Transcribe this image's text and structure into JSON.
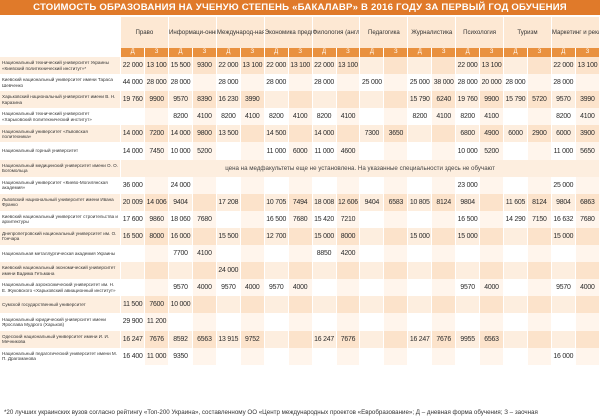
{
  "title": "СТОИМОСТЬ ОБРАЗОВАНИЯ НА УЧЕНУЮ СТЕПЕНЬ «БАКАЛАВР» В 2016 ГОДУ ЗА ПЕРВЫЙ ГОД ОБУЧЕНИЯ",
  "subjects": [
    "Право",
    "Информаци-онные техно-логии",
    "Международ-ная экономика",
    "Экономика предприятия",
    "Филология (англ.)",
    "Педагогика",
    "Журналистика",
    "Психология",
    "Туризм",
    "Маркетинг и реклама"
  ],
  "form_labels": {
    "d": "Д",
    "z": "З"
  },
  "rows": [
    {
      "name": "Национальный технический университет Украины «Киевский политехнический институт»*",
      "values": [
        "22 000",
        "13 100",
        "15 500",
        "9300",
        "22 000",
        "13 100",
        "22 000",
        "13 100",
        "22 000",
        "13 100",
        "",
        "",
        "",
        "",
        "22 000",
        "13 100",
        "",
        "",
        "22 000",
        "13 100"
      ]
    },
    {
      "name": "Киевский национальный университет имени Тараса Шевченко",
      "values": [
        "44 000",
        "28 000",
        "28 000",
        "",
        "28 000",
        "",
        "28 000",
        "",
        "28 000",
        "",
        "25 000",
        "",
        "25 000",
        "38 000",
        "28 000",
        "20 000",
        "28 000",
        "",
        "28 000",
        ""
      ]
    },
    {
      "name": "Харьковский национальный университет имени В. Н. Каразина",
      "values": [
        "19 760",
        "9900",
        "9570",
        "8390",
        "16 230",
        "3990",
        "",
        "",
        "",
        "",
        "",
        "",
        "15 790",
        "6240",
        "19 760",
        "9900",
        "15 790",
        "5720",
        "9570",
        "3990"
      ]
    },
    {
      "name": "Национальный технический университет «Харьковский политехнический институт»",
      "values": [
        "",
        "",
        "8200",
        "4100",
        "8200",
        "4100",
        "8200",
        "4100",
        "8200",
        "4100",
        "",
        "",
        "8200",
        "4100",
        "8200",
        "4100",
        "",
        "",
        "8200",
        "4100"
      ]
    },
    {
      "name": "Национальный университет «Львовская политехника»",
      "values": [
        "14 000",
        "7200",
        "14 000",
        "9800",
        "13 500",
        "",
        "14 500",
        "",
        "14 000",
        "",
        "7300",
        "3650",
        "",
        "",
        "6800",
        "4900",
        "6000",
        "2900",
        "6000",
        "3900"
      ]
    },
    {
      "name": "Национальный горный университет",
      "values": [
        "14 000",
        "7450",
        "10 000",
        "5200",
        "",
        "",
        "11 000",
        "6000",
        "11 000",
        "4600",
        "",
        "",
        "",
        "",
        "10 000",
        "5200",
        "",
        "",
        "11 000",
        "5650"
      ]
    },
    {
      "name": "Национальный медицинский университет имени О. О. Богомольца",
      "note": "цена на медфакультеты еще не установлена. На указанные специальности здесь не обучают"
    },
    {
      "name": "Национальный университет «Киево-Могилянская академия»",
      "values": [
        "36 000",
        "",
        "24 000",
        "",
        "",
        "",
        "",
        "",
        "",
        "",
        "",
        "",
        "",
        "",
        "23 000",
        "",
        "",
        "",
        "25 000",
        ""
      ]
    },
    {
      "name": "Львовский национальный университет имени Ивана Франко",
      "values": [
        "20 009",
        "14 006",
        "9404",
        "",
        "17 208",
        "",
        "10 705",
        "7494",
        "18 008",
        "12 606",
        "9404",
        "6583",
        "10 805",
        "8124",
        "9804",
        "",
        "11 605",
        "8124",
        "9804",
        "6863"
      ]
    },
    {
      "name": "Киевский национальный университет строительства и архитектуры",
      "values": [
        "17 600",
        "9860",
        "18 060",
        "7680",
        "",
        "",
        "16 500",
        "7680",
        "15 420",
        "7210",
        "",
        "",
        "",
        "",
        "16 500",
        "",
        "14 290",
        "7150",
        "16 632",
        "7680"
      ]
    },
    {
      "name": "Днепропетровский национальный университет им. О. Гончара",
      "values": [
        "16 500",
        "8000",
        "16 000",
        "",
        "15 500",
        "",
        "12 700",
        "",
        "15 000",
        "8000",
        "",
        "",
        "15 000",
        "",
        "15 000",
        "",
        "",
        "",
        "15 000",
        ""
      ]
    },
    {
      "name": "Национальная металлургическая академия Украины",
      "values": [
        "",
        "",
        "7700",
        "4100",
        "",
        "",
        "",
        "",
        "8850",
        "4200",
        "",
        "",
        "",
        "",
        "",
        "",
        "",
        "",
        "",
        ""
      ]
    },
    {
      "name": "Киевский национальный экономический университет имени Вадима Гетьмана",
      "values": [
        "",
        "",
        "",
        "",
        "24 000",
        "",
        "",
        "",
        "",
        "",
        "",
        "",
        "",
        "",
        "",
        "",
        "",
        "",
        "",
        ""
      ]
    },
    {
      "name": "Национальный аэрокосмический университет им. Н. Е. Жуковского «Харьковский авиационный институт»",
      "values": [
        "",
        "",
        "9570",
        "4000",
        "9570",
        "4000",
        "9570",
        "4000",
        "",
        "",
        "",
        "",
        "",
        "",
        "9570",
        "4000",
        "",
        "",
        "9570",
        "4000"
      ]
    },
    {
      "name": "Сумской государственный университет",
      "values": [
        "11 500",
        "7600",
        "10 000",
        "",
        "",
        "",
        "",
        "",
        "",
        "",
        "",
        "",
        "",
        "",
        "",
        "",
        "",
        "",
        "",
        ""
      ]
    },
    {
      "name": "Национальный юридический университет имени Ярослава Мудрого (Харьков)",
      "values": [
        "29 900",
        "11 200",
        "",
        "",
        "",
        "",
        "",
        "",
        "",
        "",
        "",
        "",
        "",
        "",
        "",
        "",
        "",
        "",
        "",
        ""
      ]
    },
    {
      "name": "Одесский национальный университет имени И. И. Мечникова",
      "values": [
        "16 247",
        "7676",
        "8592",
        "6563",
        "13 915",
        "9752",
        "",
        "",
        "16 247",
        "7676",
        "",
        "",
        "16 247",
        "7676",
        "9955",
        "6563",
        "",
        "",
        "",
        ""
      ]
    },
    {
      "name": "Национальный педагогический университет имени М. П. Драгоманова",
      "values": [
        "16 400",
        "11 000",
        "9350",
        "",
        "",
        "",
        "",
        "",
        "",
        "",
        "",
        "",
        "",
        "",
        "",
        "",
        "",
        "",
        "16 000",
        ""
      ]
    }
  ],
  "footnote": "*20 лучших украинских вузов согласно рейтингу «Топ-200 Украина», составленному ОО «Центр международных проектов «Евробразование»; Д – дневная форма обучения; З – заочная"
}
